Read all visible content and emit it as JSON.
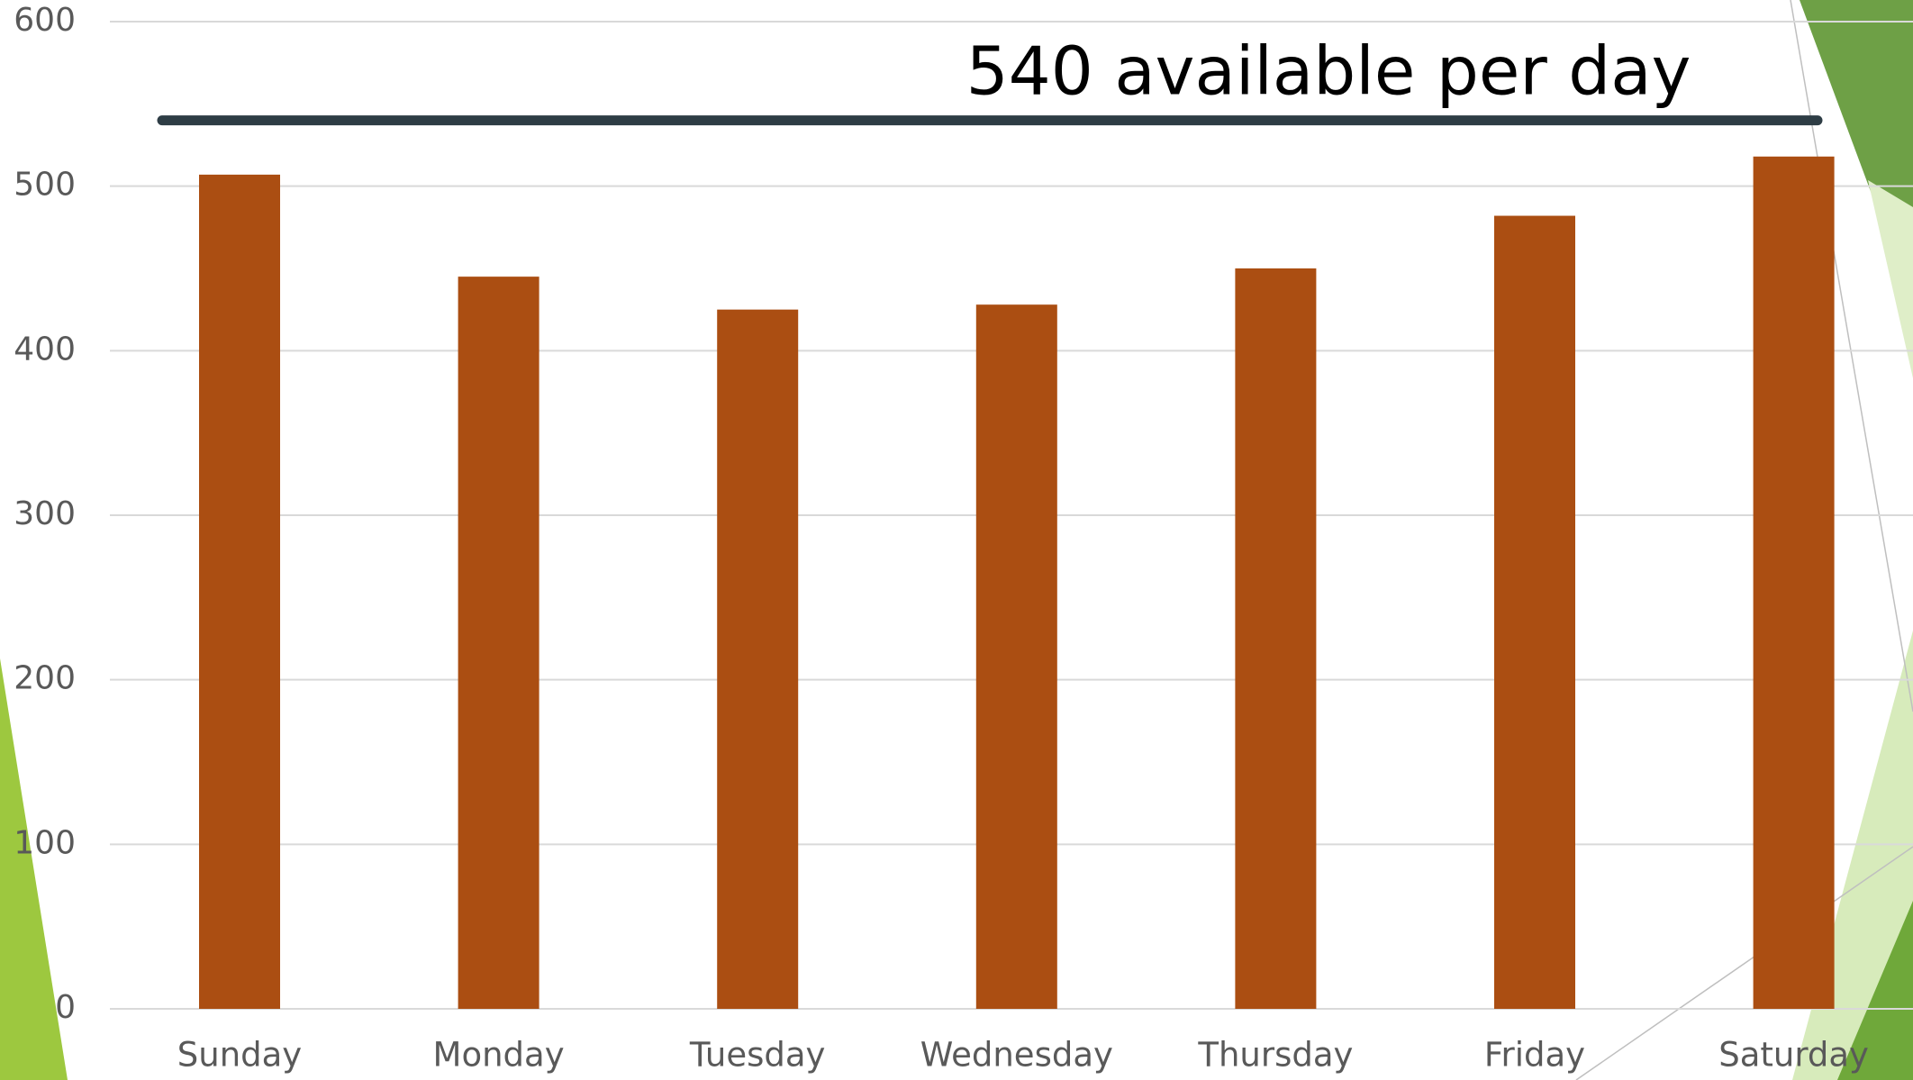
{
  "chart_data": {
    "type": "bar",
    "annotation": "540 available per day",
    "reference_value": 540,
    "categories": [
      "Sunday",
      "Monday",
      "Tuesday",
      "Wednesday",
      "Thursday",
      "Friday",
      "Saturday"
    ],
    "values": [
      507,
      445,
      425,
      428,
      450,
      482,
      518
    ],
    "color": "#ab4e12",
    "ylim": [
      0,
      600
    ],
    "yticks": [
      0,
      100,
      200,
      300,
      400,
      500,
      600
    ],
    "grid": true
  }
}
